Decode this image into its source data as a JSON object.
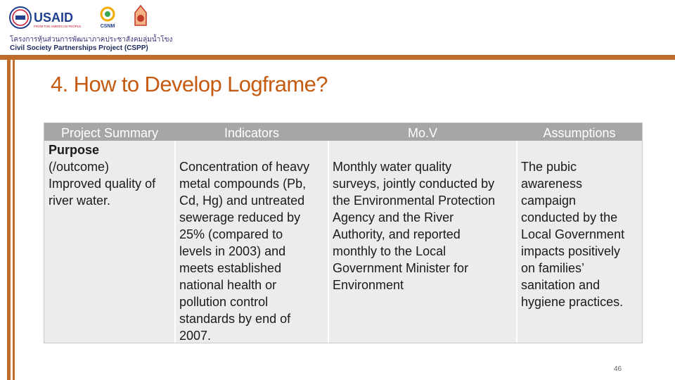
{
  "header": {
    "logo_usaid": {
      "wordmark": "USAID",
      "tagline": "FROM THE AMERICAN PEOPLE"
    },
    "logo_csnm": {
      "wordmark": "CSNM"
    },
    "subtitle_thai": "โครงการหุ้นส่วนการพัฒนาภาคประชาสังคมลุ่มน้ำโขง",
    "subtitle_eng": "Civil Society Partnerships Project (CSPP)"
  },
  "slide": {
    "title": "4. How to Develop Logframe?",
    "page_number": "46"
  },
  "table": {
    "headers": [
      "Project Summary",
      "Indicators",
      "Mo.V",
      "Assumptions"
    ],
    "row": {
      "project_summary_heading": "Purpose",
      "project_summary": "(/outcome)\nImproved quality of\nriver water.",
      "indicators": "Concentration of heavy\nmetal compounds (Pb,\nCd, Hg) and untreated\nsewerage reduced by\n25% (compared to\nlevels in 2003) and\nmeets established\nnational health or\npollution control\nstandards by end of\n2007.",
      "mov": "Monthly water quality\nsurveys, jointly conducted by\nthe Environmental Protection\nAgency and the River\nAuthority, and reported\nmonthly to the Local\nGovernment Minister for\nEnvironment",
      "assumptions": "The pubic\nawareness\ncampaign\nconducted by the\nLocal Government\nimpacts positively\non families’\nsanitation and\nhygiene practices."
    }
  },
  "colors": {
    "accent_bar": "#c06a2b",
    "title": "#c55a11",
    "table_header_bg": "#a6a6a6",
    "table_body_bg": "#ececec"
  }
}
